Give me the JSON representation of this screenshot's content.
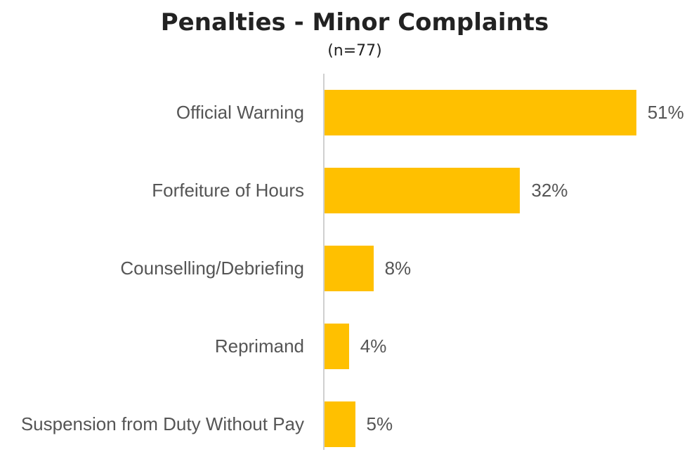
{
  "chart_data": {
    "type": "bar",
    "orientation": "horizontal",
    "title": "Penalties - Minor Complaints",
    "subtitle": "(n=77)",
    "categories": [
      "Official Warning",
      "Forfeiture of Hours",
      "Counselling/Debriefing",
      "Reprimand",
      "Suspension from Duty Without Pay"
    ],
    "values": [
      51,
      32,
      8,
      4,
      5
    ],
    "value_labels": [
      "51%",
      "32%",
      "8%",
      "4%",
      "5%"
    ],
    "color": "#ffc000"
  }
}
